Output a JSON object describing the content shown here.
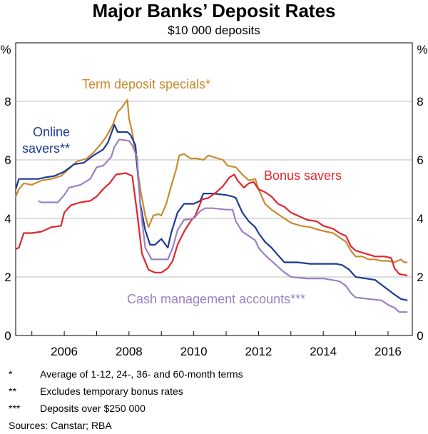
{
  "chart_data": {
    "type": "line",
    "title": "Major Banks’ Deposit Rates",
    "subtitle": "$10 000 deposits",
    "ylabel_left": "%",
    "ylabel_right": "%",
    "ylim": [
      0,
      10
    ],
    "yticks": [
      "0",
      "2",
      "4",
      "6",
      "8"
    ],
    "xlim": [
      2004.5,
      2016.75
    ],
    "xticks": [
      "2006",
      "2008",
      "2010",
      "2012",
      "2014",
      "2016"
    ],
    "grid": true,
    "series": [
      {
        "name": "Term deposit specials*",
        "color": "#c88a2e",
        "points": [
          [
            2004.5,
            4.75
          ],
          [
            2004.6,
            5.0
          ],
          [
            2004.75,
            5.2
          ],
          [
            2005.0,
            5.15
          ],
          [
            2005.3,
            5.3
          ],
          [
            2005.6,
            5.35
          ],
          [
            2005.9,
            5.45
          ],
          [
            2006.15,
            5.7
          ],
          [
            2006.4,
            5.95
          ],
          [
            2006.7,
            6.05
          ],
          [
            2006.9,
            6.25
          ],
          [
            2007.1,
            6.5
          ],
          [
            2007.3,
            6.8
          ],
          [
            2007.5,
            7.2
          ],
          [
            2007.65,
            7.65
          ],
          [
            2007.75,
            7.75
          ],
          [
            2007.85,
            7.9
          ],
          [
            2007.95,
            8.05
          ],
          [
            2008.0,
            7.4
          ],
          [
            2008.1,
            6.95
          ],
          [
            2008.2,
            6.2
          ],
          [
            2008.35,
            5.0
          ],
          [
            2008.5,
            4.1
          ],
          [
            2008.6,
            3.7
          ],
          [
            2008.75,
            4.1
          ],
          [
            2008.9,
            4.15
          ],
          [
            2009.0,
            4.1
          ],
          [
            2009.15,
            4.5
          ],
          [
            2009.3,
            5.1
          ],
          [
            2009.45,
            5.65
          ],
          [
            2009.55,
            6.15
          ],
          [
            2009.7,
            6.2
          ],
          [
            2009.9,
            6.05
          ],
          [
            2010.1,
            6.05
          ],
          [
            2010.3,
            6.0
          ],
          [
            2010.45,
            6.15
          ],
          [
            2010.6,
            6.1
          ],
          [
            2010.75,
            6.05
          ],
          [
            2010.9,
            6.0
          ],
          [
            2011.05,
            5.8
          ],
          [
            2011.3,
            5.75
          ],
          [
            2011.5,
            5.5
          ],
          [
            2011.7,
            5.3
          ],
          [
            2011.9,
            5.35
          ],
          [
            2012.0,
            5.0
          ],
          [
            2012.2,
            4.5
          ],
          [
            2012.4,
            4.3
          ],
          [
            2012.6,
            4.15
          ],
          [
            2012.8,
            4.0
          ],
          [
            2013.0,
            3.85
          ],
          [
            2013.3,
            3.75
          ],
          [
            2013.6,
            3.7
          ],
          [
            2013.9,
            3.6
          ],
          [
            2014.1,
            3.55
          ],
          [
            2014.3,
            3.5
          ],
          [
            2014.5,
            3.35
          ],
          [
            2014.7,
            3.2
          ],
          [
            2014.85,
            2.9
          ],
          [
            2015.0,
            2.7
          ],
          [
            2015.2,
            2.7
          ],
          [
            2015.4,
            2.6
          ],
          [
            2015.6,
            2.6
          ],
          [
            2015.8,
            2.55
          ],
          [
            2016.0,
            2.55
          ],
          [
            2016.2,
            2.5
          ],
          [
            2016.4,
            2.6
          ],
          [
            2016.5,
            2.5
          ],
          [
            2016.6,
            2.5
          ]
        ]
      },
      {
        "name": "Online savers**",
        "color": "#1b3c96",
        "points": [
          [
            2004.5,
            5.0
          ],
          [
            2004.6,
            5.35
          ],
          [
            2004.8,
            5.35
          ],
          [
            2005.2,
            5.35
          ],
          [
            2005.4,
            5.4
          ],
          [
            2005.7,
            5.45
          ],
          [
            2006.0,
            5.6
          ],
          [
            2006.3,
            5.85
          ],
          [
            2006.6,
            5.9
          ],
          [
            2006.9,
            6.15
          ],
          [
            2007.2,
            6.35
          ],
          [
            2007.35,
            6.6
          ],
          [
            2007.55,
            7.2
          ],
          [
            2007.65,
            6.95
          ],
          [
            2007.95,
            6.95
          ],
          [
            2008.05,
            6.85
          ],
          [
            2008.2,
            6.5
          ],
          [
            2008.35,
            4.5
          ],
          [
            2008.5,
            3.6
          ],
          [
            2008.65,
            3.1
          ],
          [
            2008.8,
            3.1
          ],
          [
            2009.0,
            3.3
          ],
          [
            2009.2,
            3.0
          ],
          [
            2009.3,
            3.5
          ],
          [
            2009.5,
            4.2
          ],
          [
            2009.7,
            4.5
          ],
          [
            2010.0,
            4.5
          ],
          [
            2010.2,
            4.6
          ],
          [
            2010.3,
            4.85
          ],
          [
            2010.6,
            4.85
          ],
          [
            2011.0,
            4.8
          ],
          [
            2011.2,
            4.75
          ],
          [
            2011.3,
            4.7
          ],
          [
            2011.5,
            4.2
          ],
          [
            2011.7,
            3.9
          ],
          [
            2011.9,
            3.7
          ],
          [
            2012.0,
            3.5
          ],
          [
            2012.2,
            3.2
          ],
          [
            2012.4,
            3.0
          ],
          [
            2012.6,
            2.75
          ],
          [
            2012.8,
            2.5
          ],
          [
            2013.2,
            2.5
          ],
          [
            2013.6,
            2.45
          ],
          [
            2014.0,
            2.45
          ],
          [
            2014.4,
            2.45
          ],
          [
            2014.6,
            2.4
          ],
          [
            2014.8,
            2.25
          ],
          [
            2015.0,
            2.0
          ],
          [
            2015.3,
            1.95
          ],
          [
            2015.6,
            1.9
          ],
          [
            2015.9,
            1.65
          ],
          [
            2016.2,
            1.4
          ],
          [
            2016.4,
            1.25
          ],
          [
            2016.6,
            1.2
          ]
        ]
      },
      {
        "name": "Bonus savers",
        "color": "#e0262b",
        "points": [
          [
            2004.5,
            2.95
          ],
          [
            2004.6,
            3.0
          ],
          [
            2004.75,
            3.5
          ],
          [
            2005.0,
            3.5
          ],
          [
            2005.3,
            3.55
          ],
          [
            2005.6,
            3.7
          ],
          [
            2005.9,
            3.75
          ],
          [
            2006.0,
            4.2
          ],
          [
            2006.2,
            4.45
          ],
          [
            2006.5,
            4.55
          ],
          [
            2006.8,
            4.6
          ],
          [
            2007.0,
            4.75
          ],
          [
            2007.2,
            5.0
          ],
          [
            2007.4,
            5.2
          ],
          [
            2007.6,
            5.5
          ],
          [
            2007.9,
            5.55
          ],
          [
            2008.1,
            5.45
          ],
          [
            2008.25,
            4.2
          ],
          [
            2008.4,
            2.8
          ],
          [
            2008.6,
            2.25
          ],
          [
            2008.8,
            2.15
          ],
          [
            2009.0,
            2.15
          ],
          [
            2009.2,
            2.3
          ],
          [
            2009.35,
            2.55
          ],
          [
            2009.5,
            3.1
          ],
          [
            2009.7,
            3.55
          ],
          [
            2009.9,
            3.9
          ],
          [
            2010.05,
            4.1
          ],
          [
            2010.25,
            4.65
          ],
          [
            2010.45,
            4.7
          ],
          [
            2010.7,
            4.9
          ],
          [
            2010.9,
            5.1
          ],
          [
            2011.1,
            5.4
          ],
          [
            2011.25,
            5.5
          ],
          [
            2011.35,
            5.3
          ],
          [
            2011.55,
            5.05
          ],
          [
            2011.7,
            5.2
          ],
          [
            2011.85,
            5.25
          ],
          [
            2012.0,
            5.0
          ],
          [
            2012.2,
            4.9
          ],
          [
            2012.4,
            4.75
          ],
          [
            2012.6,
            4.5
          ],
          [
            2012.8,
            4.4
          ],
          [
            2013.0,
            4.2
          ],
          [
            2013.2,
            4.1
          ],
          [
            2013.5,
            3.95
          ],
          [
            2013.8,
            3.9
          ],
          [
            2014.0,
            3.75
          ],
          [
            2014.3,
            3.65
          ],
          [
            2014.5,
            3.5
          ],
          [
            2014.7,
            3.4
          ],
          [
            2014.85,
            3.05
          ],
          [
            2015.0,
            2.9
          ],
          [
            2015.3,
            2.8
          ],
          [
            2015.6,
            2.7
          ],
          [
            2015.9,
            2.7
          ],
          [
            2016.1,
            2.65
          ],
          [
            2016.2,
            2.3
          ],
          [
            2016.35,
            2.1
          ],
          [
            2016.6,
            2.05
          ]
        ]
      },
      {
        "name": "Cash management accounts***",
        "color": "#9b80c2",
        "points": [
          [
            2005.2,
            4.6
          ],
          [
            2005.3,
            4.55
          ],
          [
            2005.8,
            4.55
          ],
          [
            2006.0,
            4.8
          ],
          [
            2006.15,
            5.05
          ],
          [
            2006.5,
            5.15
          ],
          [
            2006.8,
            5.35
          ],
          [
            2007.0,
            5.75
          ],
          [
            2007.2,
            5.8
          ],
          [
            2007.45,
            6.1
          ],
          [
            2007.55,
            6.45
          ],
          [
            2007.7,
            6.7
          ],
          [
            2008.0,
            6.65
          ],
          [
            2008.1,
            6.5
          ],
          [
            2008.25,
            6.1
          ],
          [
            2008.35,
            4.4
          ],
          [
            2008.5,
            3.0
          ],
          [
            2008.7,
            2.6
          ],
          [
            2009.0,
            2.6
          ],
          [
            2009.2,
            2.6
          ],
          [
            2009.35,
            3.0
          ],
          [
            2009.5,
            3.6
          ],
          [
            2009.7,
            3.95
          ],
          [
            2010.0,
            4.0
          ],
          [
            2010.2,
            4.25
          ],
          [
            2010.35,
            4.35
          ],
          [
            2010.6,
            4.35
          ],
          [
            2011.0,
            4.3
          ],
          [
            2011.2,
            4.3
          ],
          [
            2011.3,
            3.9
          ],
          [
            2011.5,
            3.55
          ],
          [
            2011.7,
            3.4
          ],
          [
            2011.9,
            3.25
          ],
          [
            2012.0,
            3.0
          ],
          [
            2012.2,
            2.75
          ],
          [
            2012.5,
            2.45
          ],
          [
            2012.75,
            2.2
          ],
          [
            2013.0,
            2.0
          ],
          [
            2013.5,
            1.95
          ],
          [
            2014.0,
            1.95
          ],
          [
            2014.5,
            1.85
          ],
          [
            2014.7,
            1.7
          ],
          [
            2014.85,
            1.45
          ],
          [
            2015.0,
            1.3
          ],
          [
            2015.4,
            1.25
          ],
          [
            2015.8,
            1.2
          ],
          [
            2016.0,
            1.05
          ],
          [
            2016.2,
            0.95
          ],
          [
            2016.35,
            0.8
          ],
          [
            2016.6,
            0.8
          ]
        ]
      }
    ],
    "series_labels": [
      {
        "lines": [
          "Term deposit specials*"
        ],
        "color": "#c88a2e"
      },
      {
        "lines": [
          "Online",
          "savers**"
        ],
        "color": "#1b3c96"
      },
      {
        "lines": [
          "Bonus savers"
        ],
        "color": "#e0262b"
      },
      {
        "lines": [
          "Cash management accounts***"
        ],
        "color": "#9b80c2"
      }
    ]
  },
  "notes": [
    {
      "mark": "*",
      "text": "Average of 1-12, 24-, 36- and 60-month terms"
    },
    {
      "mark": "**",
      "text": "Excludes temporary bonus rates"
    },
    {
      "mark": "***",
      "text": "Deposits over $250 000"
    }
  ],
  "sources": "Sources:   Canstar; RBA"
}
